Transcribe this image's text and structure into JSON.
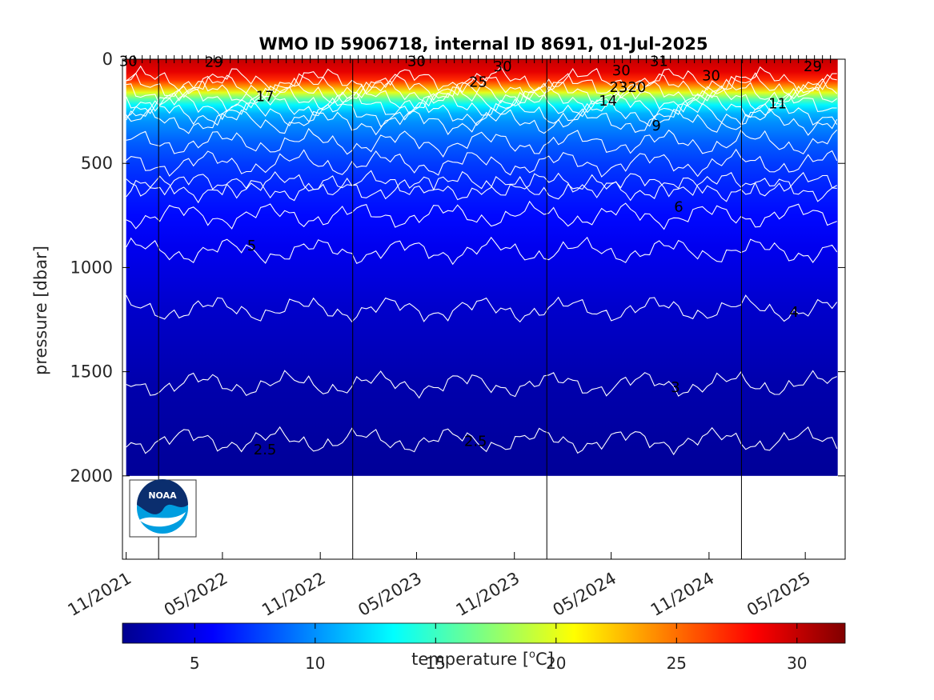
{
  "chart_data": {
    "type": "heatmap",
    "title": "WMO ID 5906718, internal ID 8691, 01-Jul-2025",
    "ylabel": "pressure [dbar]",
    "xlabel": "",
    "y_reversed": true,
    "ylim": [
      0,
      2400
    ],
    "yticks": [
      0,
      500,
      1000,
      1500,
      2000
    ],
    "xlim": [
      "2021-10-25",
      "2025-07-15"
    ],
    "xticks": [
      {
        "date": "2021-11-01",
        "label": "11/2021"
      },
      {
        "date": "2022-05-01",
        "label": "05/2022"
      },
      {
        "date": "2022-11-01",
        "label": "11/2022"
      },
      {
        "date": "2023-05-01",
        "label": "05/2023"
      },
      {
        "date": "2023-11-01",
        "label": "11/2023"
      },
      {
        "date": "2024-05-01",
        "label": "05/2024"
      },
      {
        "date": "2024-11-01",
        "label": "11/2024"
      },
      {
        "date": "2025-05-01",
        "label": "05/2025"
      }
    ],
    "year_lines": [
      "2022-01-01",
      "2023-01-01",
      "2024-01-01",
      "2025-01-01"
    ],
    "data_extent": {
      "start": "2021-11-01",
      "end": "2025-07-01",
      "max_pressure": 2000
    },
    "mean_profile": [
      {
        "pressure": 0,
        "temperature": 30
      },
      {
        "pressure": 60,
        "temperature": 29
      },
      {
        "pressure": 100,
        "temperature": 27
      },
      {
        "pressure": 130,
        "temperature": 24
      },
      {
        "pressure": 160,
        "temperature": 20
      },
      {
        "pressure": 190,
        "temperature": 16
      },
      {
        "pressure": 220,
        "temperature": 13
      },
      {
        "pressure": 260,
        "temperature": 11
      },
      {
        "pressure": 300,
        "temperature": 10
      },
      {
        "pressure": 400,
        "temperature": 8.5
      },
      {
        "pressure": 500,
        "temperature": 7.5
      },
      {
        "pressure": 600,
        "temperature": 6.8
      },
      {
        "pressure": 750,
        "temperature": 6
      },
      {
        "pressure": 900,
        "temperature": 5.2
      },
      {
        "pressure": 1050,
        "temperature": 4.6
      },
      {
        "pressure": 1200,
        "temperature": 4
      },
      {
        "pressure": 1350,
        "temperature": 3.6
      },
      {
        "pressure": 1550,
        "temperature": 3
      },
      {
        "pressure": 1800,
        "temperature": 2.6
      },
      {
        "pressure": 2000,
        "temperature": 2.3
      }
    ],
    "contours": [
      {
        "level": "6",
        "pressure": 620
      },
      {
        "level": "5",
        "pressure": 920
      },
      {
        "level": "4",
        "pressure": 1200
      },
      {
        "level": "3",
        "pressure": 1560
      },
      {
        "level": "2.5",
        "pressure": 1830
      }
    ],
    "contour_labels": [
      {
        "text": "30",
        "date": "2021-11-05",
        "pressure": 5
      },
      {
        "text": "29",
        "date": "2022-04-15",
        "pressure": 10
      },
      {
        "text": "17",
        "date": "2022-07-20",
        "pressure": 175
      },
      {
        "text": "5",
        "date": "2022-06-25",
        "pressure": 890
      },
      {
        "text": "2.5",
        "date": "2022-07-20",
        "pressure": 1870
      },
      {
        "text": "30",
        "date": "2023-05-01",
        "pressure": 5
      },
      {
        "text": "30",
        "date": "2023-10-10",
        "pressure": 30
      },
      {
        "text": "25",
        "date": "2023-08-25",
        "pressure": 105
      },
      {
        "text": "2.5",
        "date": "2023-08-20",
        "pressure": 1830
      },
      {
        "text": "30",
        "date": "2024-05-20",
        "pressure": 50
      },
      {
        "text": "23",
        "date": "2024-05-15",
        "pressure": 130
      },
      {
        "text": "320",
        "date": "2024-06-10",
        "pressure": 130
      },
      {
        "text": "14",
        "date": "2024-04-25",
        "pressure": 195
      },
      {
        "text": "9",
        "date": "2024-07-25",
        "pressure": 315
      },
      {
        "text": "31",
        "date": "2024-07-30",
        "pressure": 5
      },
      {
        "text": "30",
        "date": "2024-11-05",
        "pressure": 75
      },
      {
        "text": "6",
        "date": "2024-09-05",
        "pressure": 705
      },
      {
        "text": "3",
        "date": "2024-08-30",
        "pressure": 1570
      },
      {
        "text": "29",
        "date": "2025-05-15",
        "pressure": 30
      },
      {
        "text": "11",
        "date": "2025-03-10",
        "pressure": 210
      },
      {
        "text": "4",
        "date": "2025-04-10",
        "pressure": 1210
      }
    ],
    "colorbar": {
      "label": "temperature [°C]",
      "label_base": "temperature [",
      "label_sup": "o",
      "label_unit": "C]",
      "range": [
        2,
        32
      ],
      "ticks": [
        5,
        10,
        15,
        20,
        25,
        30
      ],
      "colormap": "jet"
    },
    "colors": {
      "contour_line": "#ffffff",
      "jet_dark_blue": "#00008f",
      "jet_blue": "#0000ff",
      "jet_cyan": "#00ffff",
      "jet_yellow": "#ffff00",
      "jet_red": "#ff0000",
      "jet_dark_red": "#800000"
    }
  },
  "logo": {
    "text": "NOAA",
    "icon": "noaa-logo-icon"
  }
}
